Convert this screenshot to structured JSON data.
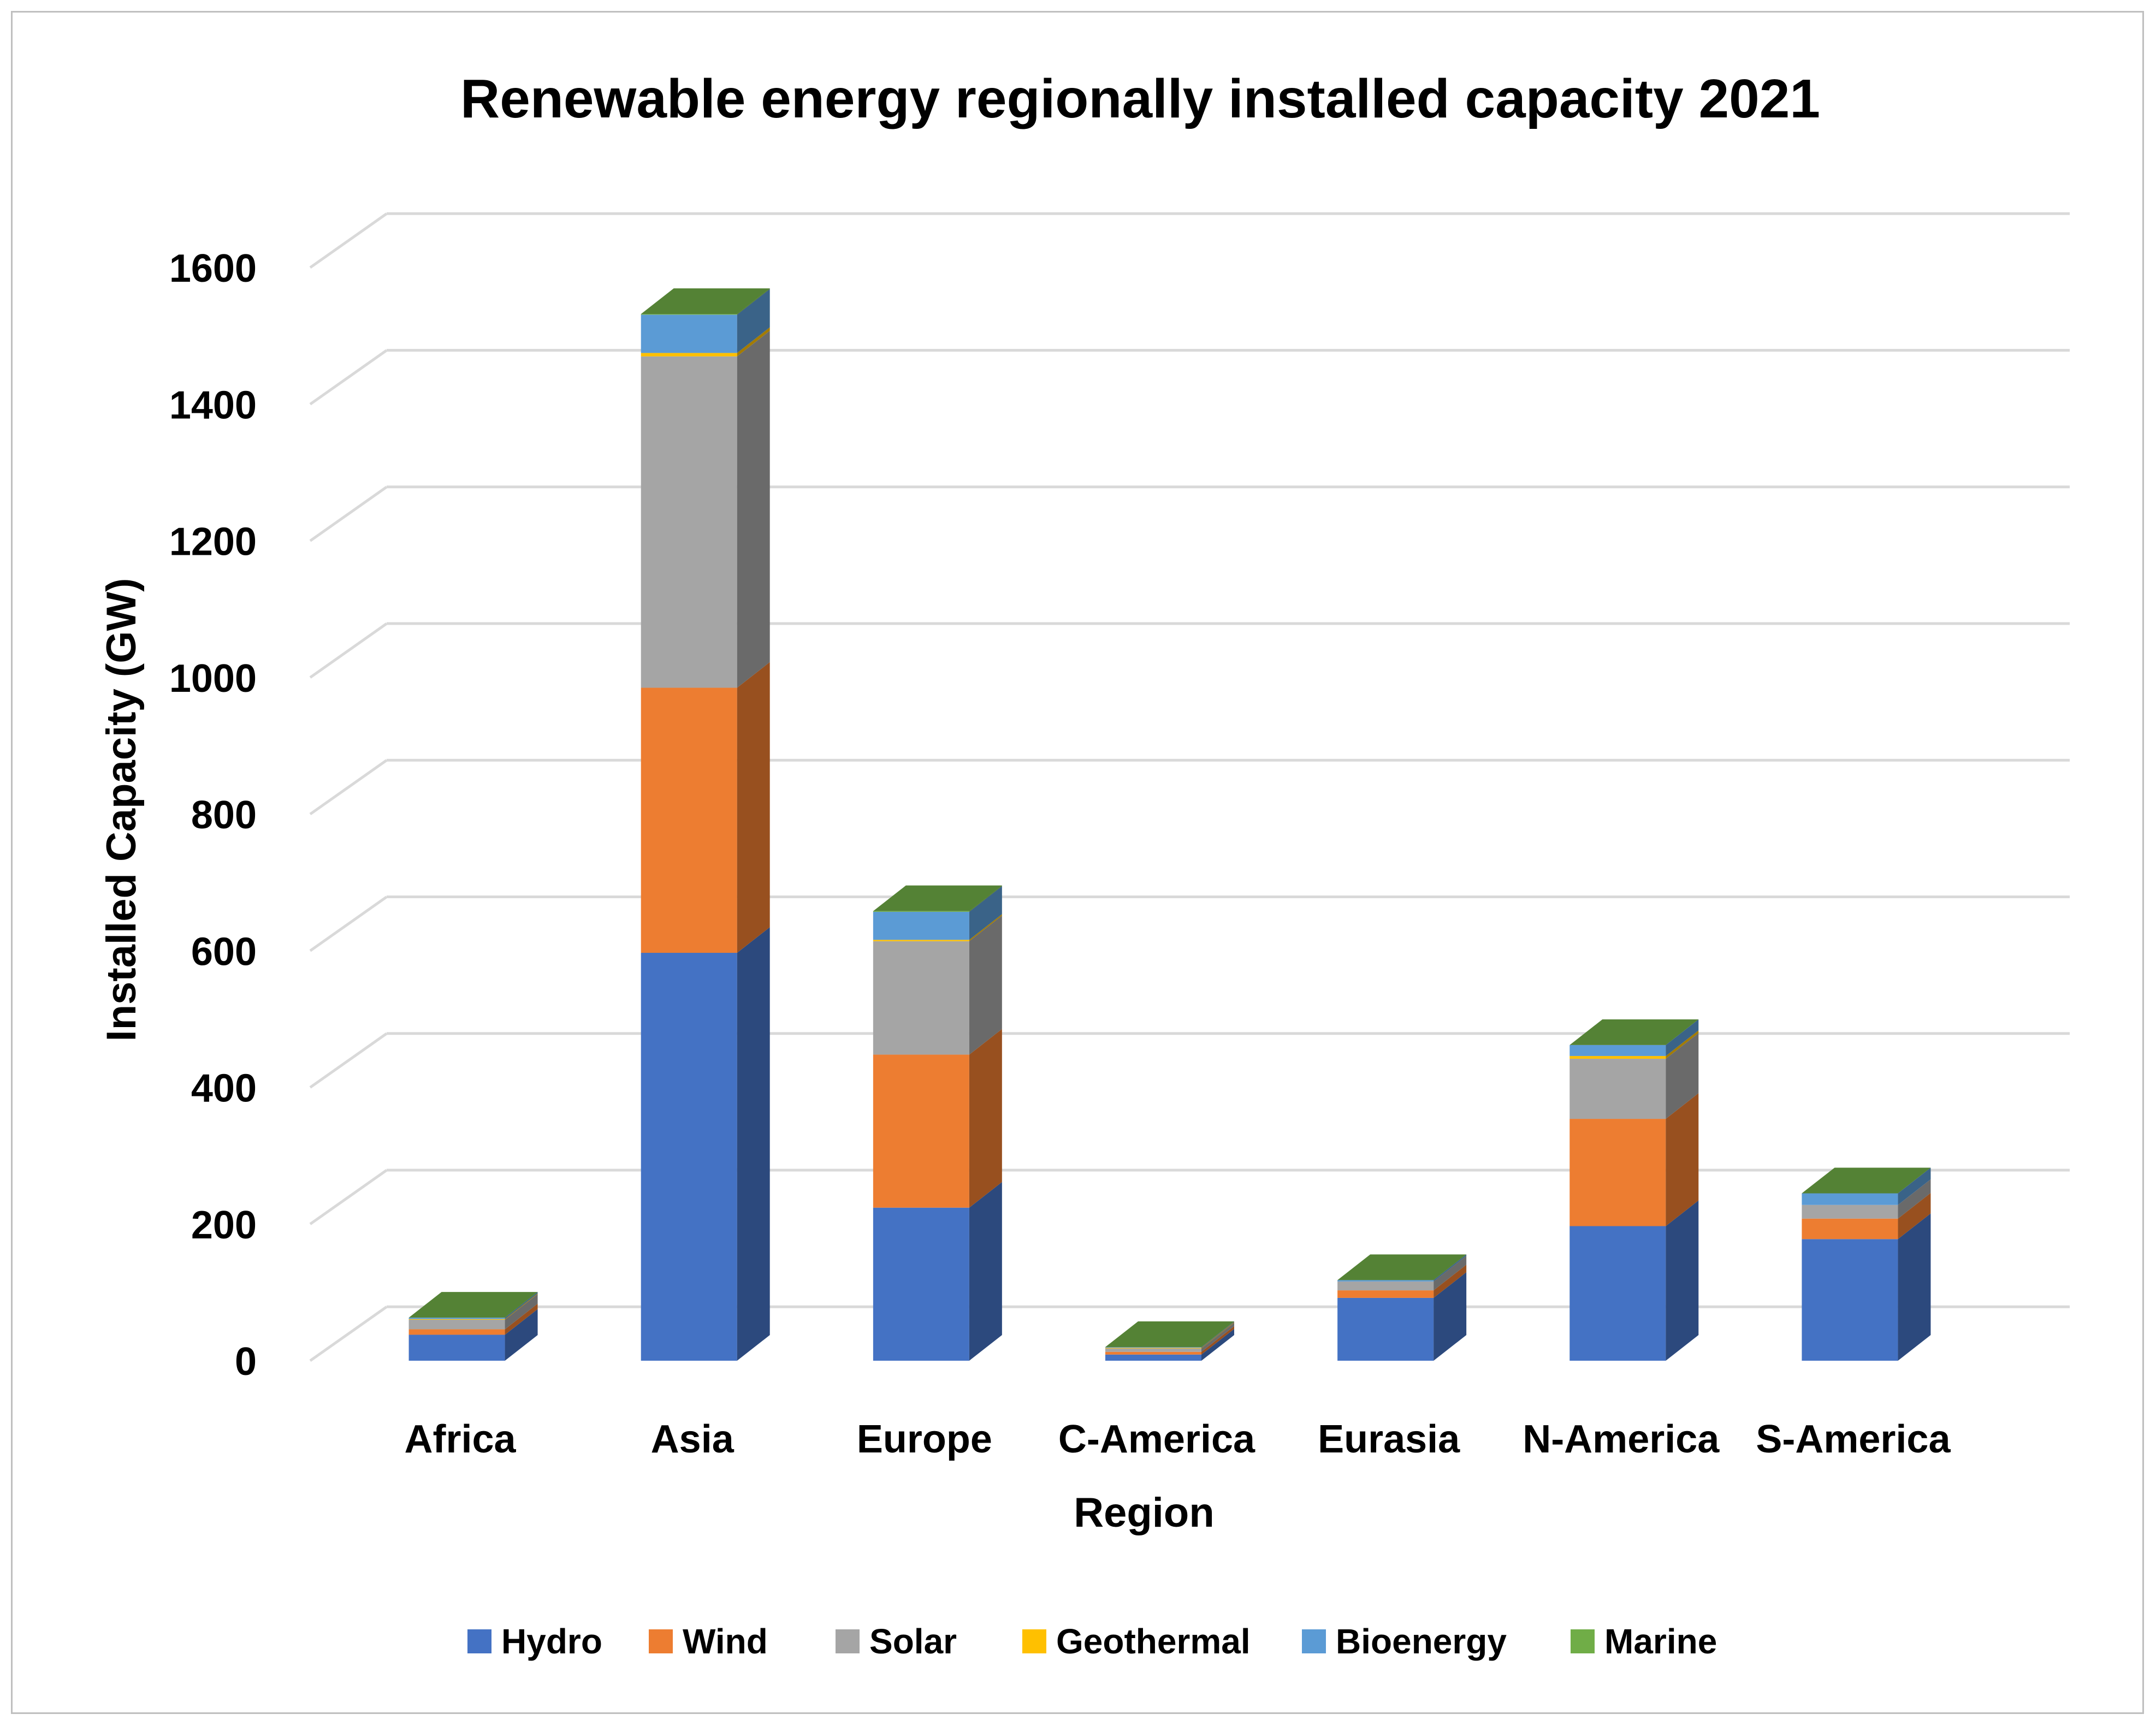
{
  "chart_data": {
    "type": "bar",
    "stacked": true,
    "three_d": true,
    "title": "Renewable energy regionally installed capacity 2021",
    "xlabel": "Region",
    "ylabel": "Installed Capacity (GW)",
    "ylim": [
      0,
      1600
    ],
    "yticks": [
      0,
      200,
      400,
      600,
      800,
      1000,
      1200,
      1400,
      1600
    ],
    "yticks_labels": [
      "0",
      "200",
      "400",
      "600",
      "800",
      "1000",
      "1200",
      "1400",
      "1600"
    ],
    "grid": true,
    "legend_position": "bottom",
    "categories": [
      "Africa",
      "Asia",
      "Europe",
      "C-America",
      "Eurasia",
      "N-America",
      "S-America"
    ],
    "series": [
      {
        "name": "Hydro",
        "color": "#4472C4",
        "values": [
          38,
          597,
          224,
          9,
          92,
          197,
          178
        ]
      },
      {
        "name": "Wind",
        "color": "#ED7D31",
        "values": [
          8,
          388,
          224,
          4,
          11,
          157,
          30
        ]
      },
      {
        "name": "Solar",
        "color": "#A5A5A5",
        "values": [
          14,
          485,
          166,
          5,
          13,
          88,
          20
        ]
      },
      {
        "name": "Geothermal",
        "color": "#FFC000",
        "values": [
          1,
          5,
          2,
          1,
          0,
          4,
          0
        ]
      },
      {
        "name": "Bioenergy",
        "color": "#5B9BD5",
        "values": [
          2,
          56,
          41,
          1,
          2,
          16,
          17
        ]
      },
      {
        "name": "Marine",
        "color": "#70AD47",
        "values": [
          0,
          1,
          1,
          0,
          0,
          0,
          0
        ]
      }
    ]
  }
}
